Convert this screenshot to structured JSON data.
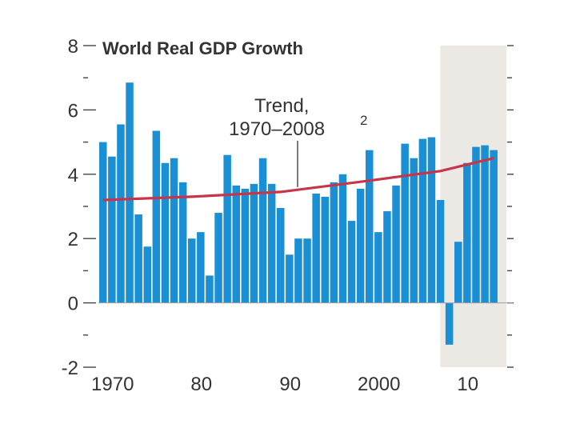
{
  "chart_data": {
    "type": "bar",
    "title": "World Real GDP Growth",
    "xlabel": "",
    "ylabel": "",
    "ylim": [
      -2,
      8
    ],
    "y_ticks": [
      8,
      6,
      4,
      2,
      0,
      -2
    ],
    "x_tick_labels": [
      {
        "year": 1970,
        "label": "1970"
      },
      {
        "year": 1980,
        "label": "80"
      },
      {
        "year": 1990,
        "label": "90"
      },
      {
        "year": 2000,
        "label": "2000"
      },
      {
        "year": 2010,
        "label": "10"
      }
    ],
    "years": [
      1970,
      1971,
      1972,
      1973,
      1974,
      1975,
      1976,
      1977,
      1978,
      1979,
      1980,
      1981,
      1982,
      1983,
      1984,
      1985,
      1986,
      1987,
      1988,
      1989,
      1990,
      1991,
      1992,
      1993,
      1994,
      1995,
      1996,
      1997,
      1998,
      1999,
      2000,
      2001,
      2002,
      2003,
      2004,
      2005,
      2006,
      2007,
      2008,
      2009,
      2010,
      2011,
      2012,
      2013,
      2014
    ],
    "values": [
      5.0,
      4.55,
      5.55,
      6.85,
      2.75,
      1.75,
      5.35,
      4.35,
      4.5,
      3.75,
      2.0,
      2.2,
      0.85,
      2.8,
      4.6,
      3.65,
      3.55,
      3.7,
      4.5,
      3.7,
      2.95,
      1.5,
      2.0,
      2.0,
      3.4,
      3.3,
      3.75,
      4.0,
      2.55,
      3.55,
      4.75,
      2.2,
      2.85,
      3.65,
      4.95,
      4.5,
      5.1,
      5.15,
      3.2,
      -1.3,
      1.9,
      4.35,
      4.85,
      4.9,
      4.75
    ],
    "bar_color": "#1a8fd4",
    "trend": {
      "label_line1": "Trend,",
      "label_line2": "1970–2008",
      "footnote": "2",
      "color": "#c6354a",
      "years": [
        1970,
        1980,
        1990,
        2000,
        2008,
        2014
      ],
      "values": [
        3.2,
        3.3,
        3.45,
        3.8,
        4.1,
        4.5
      ]
    },
    "projection_shading": {
      "from_year": 2008.5,
      "to_year": 2015,
      "color": "#ece9e4"
    }
  }
}
